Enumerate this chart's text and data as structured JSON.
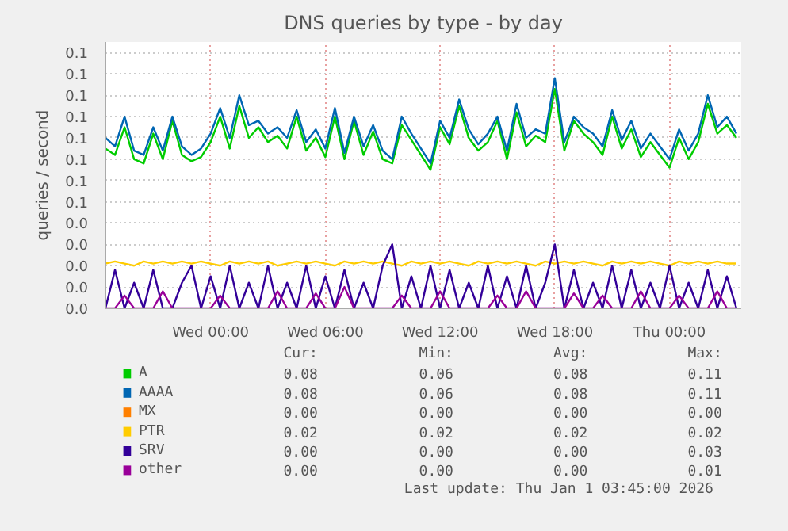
{
  "chart_data": {
    "type": "line",
    "title": "DNS queries by type - by day",
    "ylabel": "queries / second",
    "x": [
      "2025-12-30T18:30",
      "2025-12-30T19:00",
      "2025-12-30T19:30",
      "2025-12-30T20:00",
      "2025-12-30T20:30",
      "2025-12-30T21:00",
      "2025-12-30T21:30",
      "2025-12-30T22:00",
      "2025-12-30T22:30",
      "2025-12-30T23:00",
      "2025-12-30T23:30",
      "2025-12-31T00:00",
      "2025-12-31T00:30",
      "2025-12-31T01:00",
      "2025-12-31T01:30",
      "2025-12-31T02:00",
      "2025-12-31T02:30",
      "2025-12-31T03:00",
      "2025-12-31T03:30",
      "2025-12-31T04:00",
      "2025-12-31T04:30",
      "2025-12-31T05:00",
      "2025-12-31T05:30",
      "2025-12-31T06:00",
      "2025-12-31T06:30",
      "2025-12-31T07:00",
      "2025-12-31T07:30",
      "2025-12-31T08:00",
      "2025-12-31T08:30",
      "2025-12-31T09:00",
      "2025-12-31T09:30",
      "2025-12-31T10:00",
      "2025-12-31T10:30",
      "2025-12-31T11:00",
      "2025-12-31T11:30",
      "2025-12-31T12:00",
      "2025-12-31T12:30",
      "2025-12-31T13:00",
      "2025-12-31T13:30",
      "2025-12-31T14:00",
      "2025-12-31T14:30",
      "2025-12-31T15:00",
      "2025-12-31T15:30",
      "2025-12-31T16:00",
      "2025-12-31T16:30",
      "2025-12-31T17:00",
      "2025-12-31T17:30",
      "2025-12-31T18:00",
      "2025-12-31T18:30",
      "2025-12-31T19:00",
      "2025-12-31T19:30",
      "2025-12-31T20:00",
      "2025-12-31T20:30",
      "2025-12-31T21:00",
      "2025-12-31T21:30",
      "2025-12-31T22:00",
      "2025-12-31T22:30",
      "2025-12-31T23:00",
      "2025-12-31T23:30",
      "2026-01-01T00:00",
      "2026-01-01T00:30",
      "2026-01-01T01:00",
      "2026-01-01T01:30",
      "2026-01-01T02:00",
      "2026-01-01T02:30",
      "2026-01-01T03:00",
      "2026-01-01T03:30"
    ],
    "xlim": [
      "2025-12-30T18:30",
      "2026-01-01T03:45"
    ],
    "xticks": [
      {
        "value": "2025-12-31T00:00",
        "label": "Wed 00:00"
      },
      {
        "value": "2025-12-31T06:00",
        "label": "Wed 06:00"
      },
      {
        "value": "2025-12-31T12:00",
        "label": "Wed 12:00"
      },
      {
        "value": "2025-12-31T18:00",
        "label": "Wed 18:00"
      },
      {
        "value": "2026-01-01T00:00",
        "label": "Thu 00:00"
      }
    ],
    "ylim": [
      0,
      0.125
    ],
    "yticks": [
      {
        "value": 0,
        "label": "0.0"
      },
      {
        "value": 0.01,
        "label": "0.0"
      },
      {
        "value": 0.02,
        "label": "0.0"
      },
      {
        "value": 0.03,
        "label": "0.0"
      },
      {
        "value": 0.04,
        "label": "0.0"
      },
      {
        "value": 0.05,
        "label": "0.1"
      },
      {
        "value": 0.06,
        "label": "0.1"
      },
      {
        "value": 0.07,
        "label": "0.1"
      },
      {
        "value": 0.08,
        "label": "0.1"
      },
      {
        "value": 0.09,
        "label": "0.1"
      },
      {
        "value": 0.1,
        "label": "0.1"
      },
      {
        "value": 0.11,
        "label": "0.1"
      },
      {
        "value": 0.12,
        "label": "0.1"
      }
    ],
    "grid": true,
    "legend": "bottom",
    "marker": "none",
    "line_style": "solid",
    "series": [
      {
        "name": "A",
        "color": "#00cc00",
        "values": [
          0.075,
          0.072,
          0.085,
          0.07,
          0.068,
          0.082,
          0.07,
          0.088,
          0.072,
          0.069,
          0.071,
          0.078,
          0.09,
          0.075,
          0.095,
          0.08,
          0.085,
          0.078,
          0.081,
          0.075,
          0.09,
          0.074,
          0.08,
          0.071,
          0.09,
          0.07,
          0.088,
          0.072,
          0.083,
          0.07,
          0.068,
          0.086,
          0.079,
          0.072,
          0.065,
          0.085,
          0.077,
          0.095,
          0.08,
          0.074,
          0.078,
          0.088,
          0.07,
          0.092,
          0.076,
          0.081,
          0.078,
          0.103,
          0.074,
          0.088,
          0.082,
          0.078,
          0.072,
          0.09,
          0.075,
          0.084,
          0.071,
          0.078,
          0.072,
          0.066,
          0.08,
          0.07,
          0.078,
          0.096,
          0.082,
          0.086,
          0.08
        ]
      },
      {
        "name": "AAAA",
        "color": "#0066b3",
        "values": [
          0.08,
          0.076,
          0.09,
          0.074,
          0.072,
          0.085,
          0.074,
          0.09,
          0.076,
          0.072,
          0.075,
          0.082,
          0.094,
          0.08,
          0.1,
          0.086,
          0.088,
          0.082,
          0.085,
          0.08,
          0.093,
          0.078,
          0.084,
          0.075,
          0.094,
          0.073,
          0.09,
          0.076,
          0.086,
          0.074,
          0.07,
          0.09,
          0.082,
          0.075,
          0.068,
          0.088,
          0.08,
          0.098,
          0.084,
          0.077,
          0.082,
          0.09,
          0.074,
          0.096,
          0.08,
          0.084,
          0.082,
          0.108,
          0.078,
          0.09,
          0.085,
          0.082,
          0.076,
          0.093,
          0.079,
          0.088,
          0.075,
          0.082,
          0.076,
          0.07,
          0.084,
          0.074,
          0.082,
          0.1,
          0.085,
          0.09,
          0.082
        ]
      },
      {
        "name": "MX",
        "color": "#ff8000",
        "values": [
          null,
          null,
          null,
          null,
          null,
          null,
          null,
          null,
          null,
          null,
          null,
          null,
          null,
          null,
          null,
          null,
          null,
          null,
          null,
          null,
          null,
          null,
          null,
          null,
          null,
          null,
          null,
          null,
          null,
          null,
          null,
          null,
          null,
          null,
          null,
          null,
          null,
          null,
          null,
          null,
          null,
          null,
          null,
          null,
          null,
          null,
          null,
          null,
          null,
          null,
          null,
          null,
          null,
          null,
          null,
          null,
          null,
          null,
          null,
          null,
          null,
          null,
          null,
          null,
          null,
          null,
          null
        ]
      },
      {
        "name": "PTR",
        "color": "#ffcc00",
        "values": [
          0.021,
          0.022,
          0.021,
          0.02,
          0.022,
          0.021,
          0.022,
          0.021,
          0.022,
          0.021,
          0.022,
          0.021,
          0.02,
          0.022,
          0.021,
          0.022,
          0.021,
          0.022,
          0.02,
          0.021,
          0.022,
          0.021,
          0.022,
          0.021,
          0.02,
          0.022,
          0.021,
          0.022,
          0.021,
          0.022,
          0.021,
          0.02,
          0.022,
          0.021,
          0.022,
          0.021,
          0.022,
          0.021,
          0.02,
          0.022,
          0.021,
          0.022,
          0.021,
          0.022,
          0.021,
          0.02,
          0.022,
          0.021,
          0.022,
          0.021,
          0.022,
          0.021,
          0.02,
          0.022,
          0.021,
          0.022,
          0.021,
          0.022,
          0.021,
          0.02,
          0.022,
          0.021,
          0.022,
          0.021,
          0.022,
          0.021,
          0.021
        ]
      },
      {
        "name": "SRV",
        "color": "#330099",
        "values": [
          0,
          0.018,
          0,
          0.012,
          0,
          0.018,
          0,
          0,
          0.012,
          0.02,
          0,
          0.015,
          0,
          0.02,
          0,
          0.012,
          0,
          0.02,
          0,
          0.012,
          0,
          0.02,
          0,
          0.015,
          0,
          0.018,
          0,
          0.012,
          0,
          0.02,
          0.03,
          0,
          0.015,
          0,
          0.02,
          0,
          0.018,
          0,
          0.012,
          0,
          0.02,
          0,
          0.015,
          0,
          0.02,
          0,
          0.012,
          0.03,
          0,
          0.018,
          0,
          0.012,
          0,
          0.02,
          0,
          0.018,
          0,
          0.012,
          0,
          0.02,
          0,
          0.012,
          0,
          0.018,
          0,
          0.015,
          0
        ]
      },
      {
        "name": "other",
        "color": "#990099",
        "values": [
          0,
          0,
          0.006,
          0,
          0,
          0,
          0.008,
          0,
          0,
          0,
          0,
          0,
          0.006,
          0,
          0,
          0,
          0,
          0,
          0.008,
          0,
          0,
          0,
          0.007,
          0,
          0,
          0.01,
          0,
          0,
          0,
          0,
          0,
          0.006,
          0,
          0,
          0,
          0.008,
          0,
          0,
          0,
          0,
          0,
          0.006,
          0,
          0,
          0.008,
          0,
          0,
          0,
          0,
          0.007,
          0,
          0,
          0.006,
          0,
          0,
          0,
          0.008,
          0,
          0,
          0,
          0.006,
          0,
          0,
          0,
          0.008,
          0,
          0
        ]
      }
    ],
    "annotations": [
      "Cur:",
      "Min:",
      "Avg:",
      "Max:",
      "0.08",
      "0.06",
      "0.08",
      "0.11",
      "0.08",
      "0.06",
      "0.08",
      "0.11",
      "0.00",
      "0.00",
      "0.00",
      "0.00",
      "0.02",
      "0.02",
      "0.02",
      "0.02",
      "0.00",
      "0.00",
      "0.00",
      "0.03",
      "0.00",
      "0.00",
      "0.00",
      "0.01",
      "Last update: Thu Jan  1 03:45:00 2026"
    ]
  }
}
